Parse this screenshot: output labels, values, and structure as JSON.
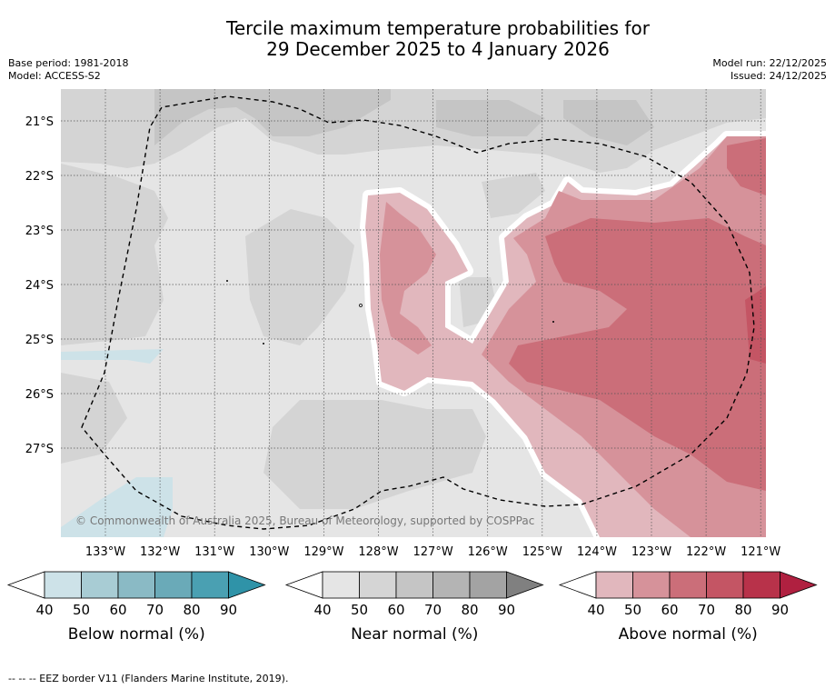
{
  "title": {
    "line1": "Tercile maximum temperature probabilities for",
    "line2": "29 December 2025 to 4 January 2026"
  },
  "meta": {
    "base_period": "Base period: 1981-2018",
    "model": "Model: ACCESS-S2",
    "model_run": "Model run: 22/12/2025",
    "issued": "Issued: 24/12/2025"
  },
  "map": {
    "copyright": "© Commonwealth of Australia 2025, Bureau of Meteorology, supported by COSPPac",
    "lat_labels": [
      "21°S",
      "22°S",
      "23°S",
      "24°S",
      "25°S",
      "26°S",
      "27°S"
    ],
    "lon_labels": [
      "133°W",
      "132°W",
      "131°W",
      "130°W",
      "129°W",
      "128°W",
      "127°W",
      "126°W",
      "125°W",
      "124°W",
      "123°W",
      "122°W",
      "121°W"
    ]
  },
  "legends": [
    {
      "label": "Below normal (%)",
      "ticks": [
        "40",
        "50",
        "60",
        "70",
        "80",
        "90"
      ],
      "colors": [
        "#cde2e8",
        "#a8ccd4",
        "#8abac5",
        "#6aaab8",
        "#4aa0b2",
        "#2f93a8"
      ]
    },
    {
      "label": "Near normal (%)",
      "ticks": [
        "40",
        "50",
        "60",
        "70",
        "80",
        "90"
      ],
      "colors": [
        "#e5e5e5",
        "#d5d5d5",
        "#c5c5c5",
        "#b4b4b4",
        "#a3a3a3",
        "#808080"
      ]
    },
    {
      "label": "Above normal (%)",
      "ticks": [
        "40",
        "50",
        "60",
        "70",
        "80",
        "90"
      ],
      "colors": [
        "#e1b7bd",
        "#d6929a",
        "#cb6e79",
        "#c45564",
        "#b8324a",
        "#b02040"
      ]
    }
  ],
  "footnote": "--  --  -- EEZ border V11 (Flanders Marine Institute, 2019)."
}
